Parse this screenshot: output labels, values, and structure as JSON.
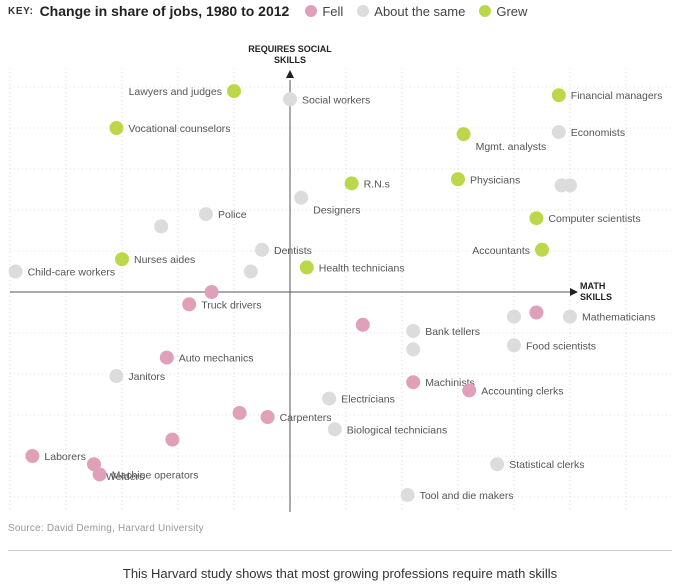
{
  "key": {
    "label": "KEY:",
    "title": "Change in share of jobs, 1980 to 2012",
    "items": [
      {
        "label": "Fell",
        "color": "#e0a0b8"
      },
      {
        "label": "About the same",
        "color": "#dcdcdc"
      },
      {
        "label": "Grew",
        "color": "#bcd84a"
      }
    ]
  },
  "chart_data": {
    "type": "scatter",
    "title": "Change in share of jobs, 1980 to 2012",
    "xlabel": "MATH SKILLS",
    "ylabel": "REQUIRES SOCIAL SKILLS",
    "xlim": [
      -5.2,
      7
    ],
    "ylim": [
      -5.2,
      5.7
    ],
    "grid": true,
    "legend_position": "top-left",
    "points": [
      {
        "x": -1,
        "y": 4.9,
        "category": "Grew",
        "label": "Lawyers and judges"
      },
      {
        "x": 0,
        "y": 4.7,
        "category": "About the same",
        "label": "Social workers"
      },
      {
        "x": -3.1,
        "y": 4,
        "category": "Grew",
        "label": "Vocational counselors"
      },
      {
        "x": 4.8,
        "y": 4.8,
        "category": "Grew",
        "label": "Financial managers"
      },
      {
        "x": 4.8,
        "y": 3.9,
        "category": "About the same",
        "label": "Economists"
      },
      {
        "x": 3.1,
        "y": 3.85,
        "category": "Grew",
        "label": "Mgmt. analysts"
      },
      {
        "x": 1.1,
        "y": 2.65,
        "category": "Grew",
        "label": "R.N.s"
      },
      {
        "x": 3,
        "y": 2.75,
        "category": "Grew",
        "label": "Physicians"
      },
      {
        "x": 0.2,
        "y": 2.3,
        "category": "About the same",
        "label": "Designers"
      },
      {
        "x": 4.85,
        "y": 2.6,
        "category": "About the same",
        "label": ""
      },
      {
        "x": 5,
        "y": 2.6,
        "category": "About the same",
        "label": ""
      },
      {
        "x": -1.5,
        "y": 1.9,
        "category": "About the same",
        "label": "Police"
      },
      {
        "x": -2.3,
        "y": 1.6,
        "category": "About the same",
        "label": ""
      },
      {
        "x": 4.4,
        "y": 1.8,
        "category": "Grew",
        "label": "Computer scientists"
      },
      {
        "x": -0.5,
        "y": 1.03,
        "category": "About the same",
        "label": "Dentists"
      },
      {
        "x": -3,
        "y": 0.8,
        "category": "Grew",
        "label": "Nurses aides"
      },
      {
        "x": 4.5,
        "y": 1.03,
        "category": "Grew",
        "label": "Accountants"
      },
      {
        "x": 0.3,
        "y": 0.6,
        "category": "Grew",
        "label": "Health technicians"
      },
      {
        "x": -0.7,
        "y": 0.5,
        "category": "About the same",
        "label": ""
      },
      {
        "x": -4.9,
        "y": 0.5,
        "category": "About the same",
        "label": "Child-care workers"
      },
      {
        "x": -1.4,
        "y": 0,
        "category": "Fell",
        "label": ""
      },
      {
        "x": -1.8,
        "y": -0.3,
        "category": "Fell",
        "label": "Truck drivers"
      },
      {
        "x": 4,
        "y": -0.6,
        "category": "About the same",
        "label": ""
      },
      {
        "x": 4.4,
        "y": -0.5,
        "category": "Fell",
        "label": ""
      },
      {
        "x": 5,
        "y": -0.6,
        "category": "About the same",
        "label": "Mathematicians"
      },
      {
        "x": 1.3,
        "y": -0.8,
        "category": "Fell",
        "label": ""
      },
      {
        "x": 2.2,
        "y": -0.95,
        "category": "About the same",
        "label": "Bank tellers"
      },
      {
        "x": 4,
        "y": -1.3,
        "category": "About the same",
        "label": "Food scientists"
      },
      {
        "x": 2.2,
        "y": -1.4,
        "category": "About the same",
        "label": ""
      },
      {
        "x": -2.2,
        "y": -1.6,
        "category": "Fell",
        "label": "Auto mechanics"
      },
      {
        "x": -3.1,
        "y": -2.05,
        "category": "About the same",
        "label": "Janitors"
      },
      {
        "x": 2.2,
        "y": -2.2,
        "category": "Fell",
        "label": "Machinists"
      },
      {
        "x": 3.2,
        "y": -2.4,
        "category": "Fell",
        "label": "Accounting clerks"
      },
      {
        "x": 0.7,
        "y": -2.6,
        "category": "About the same",
        "label": "Electricians"
      },
      {
        "x": -0.9,
        "y": -2.95,
        "category": "Fell",
        "label": ""
      },
      {
        "x": -0.4,
        "y": -3.05,
        "category": "Fell",
        "label": "Carpenters"
      },
      {
        "x": 0.8,
        "y": -3.35,
        "category": "About the same",
        "label": "Biological technicians"
      },
      {
        "x": -2.1,
        "y": -3.6,
        "category": "Fell",
        "label": ""
      },
      {
        "x": -4.6,
        "y": -4.0,
        "category": "Fell",
        "label": "Laborers"
      },
      {
        "x": -3.5,
        "y": -4.2,
        "category": "Fell",
        "label": "Welders"
      },
      {
        "x": -3.4,
        "y": -4.45,
        "category": "Fell",
        "label": "Machine operators"
      },
      {
        "x": 3.7,
        "y": -4.2,
        "category": "About the same",
        "label": "Statistical clerks"
      },
      {
        "x": 2.1,
        "y": -4.95,
        "category": "About the same",
        "label": "Tool and die makers"
      }
    ]
  },
  "source": "Source: David Deming, Harvard University",
  "caption": "This Harvard study shows that most growing professions require math skills"
}
